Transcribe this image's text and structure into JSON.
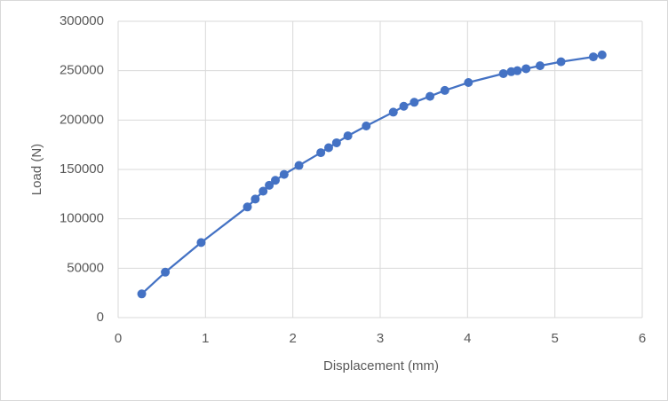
{
  "chart_data": {
    "type": "scatter-line",
    "x_label": "Displacement (mm)",
    "y_label": "Load (N)",
    "x": [
      0.27,
      0.54,
      0.95,
      1.48,
      1.57,
      1.66,
      1.73,
      1.8,
      1.9,
      2.07,
      2.32,
      2.41,
      2.5,
      2.63,
      2.84,
      3.15,
      3.27,
      3.39,
      3.57,
      3.74,
      4.01,
      4.41,
      4.5,
      4.57,
      4.67,
      4.83,
      5.07,
      5.44,
      5.54
    ],
    "values": [
      24000,
      46000,
      76000,
      112000,
      120000,
      128000,
      134000,
      139000,
      145000,
      154000,
      167000,
      172000,
      177000,
      184000,
      194000,
      208000,
      214000,
      218000,
      224000,
      230000,
      238000,
      247000,
      249000,
      250000,
      252000,
      255000,
      259000,
      264000,
      266000
    ],
    "color": "#4472c4",
    "xlim": [
      0,
      6
    ],
    "xticks": [
      0,
      1,
      2,
      3,
      4,
      5,
      6
    ],
    "ylim": [
      0,
      300000
    ],
    "yticks": [
      0,
      50000,
      100000,
      150000,
      200000,
      250000,
      300000
    ],
    "grid": true
  }
}
